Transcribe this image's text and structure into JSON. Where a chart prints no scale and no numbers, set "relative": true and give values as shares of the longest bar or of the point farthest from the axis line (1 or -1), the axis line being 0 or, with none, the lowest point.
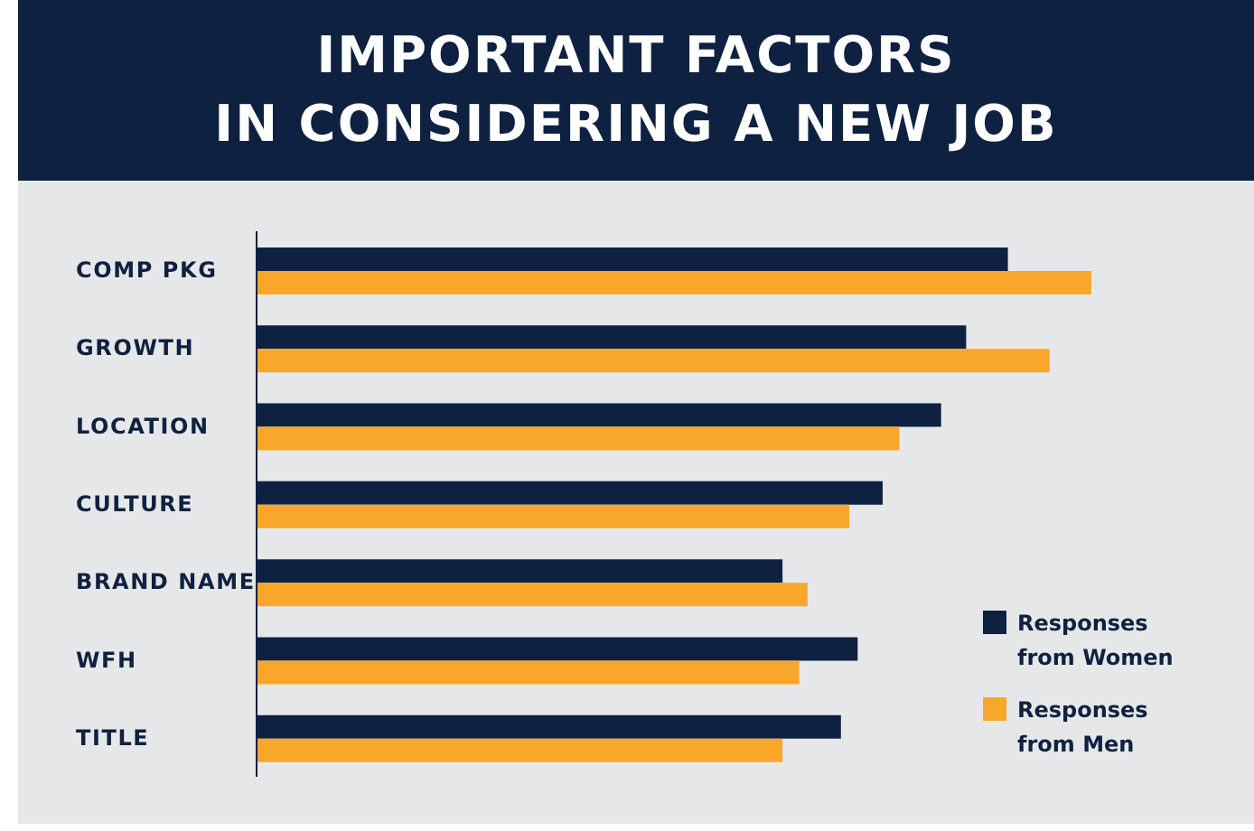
{
  "chart_data": {
    "type": "bar",
    "orientation": "horizontal",
    "relative": true,
    "title": "IMPORTANT FACTORS\nIN CONSIDERING A NEW JOB",
    "categories": [
      "COMP PKG",
      "GROWTH",
      "LOCATION",
      "CULTURE",
      "BRAND NAME",
      "WFH",
      "TITLE"
    ],
    "series": [
      {
        "name": "Responses from Women",
        "color": "#0f2140",
        "values": [
          0.9,
          0.85,
          0.82,
          0.75,
          0.63,
          0.72,
          0.7
        ]
      },
      {
        "name": "Responses from Men",
        "color": "#f9a72b",
        "values": [
          1,
          0.95,
          0.77,
          0.71,
          0.66,
          0.65,
          0.63
        ]
      }
    ],
    "legend": "bottom right",
    "grid": false
  }
}
